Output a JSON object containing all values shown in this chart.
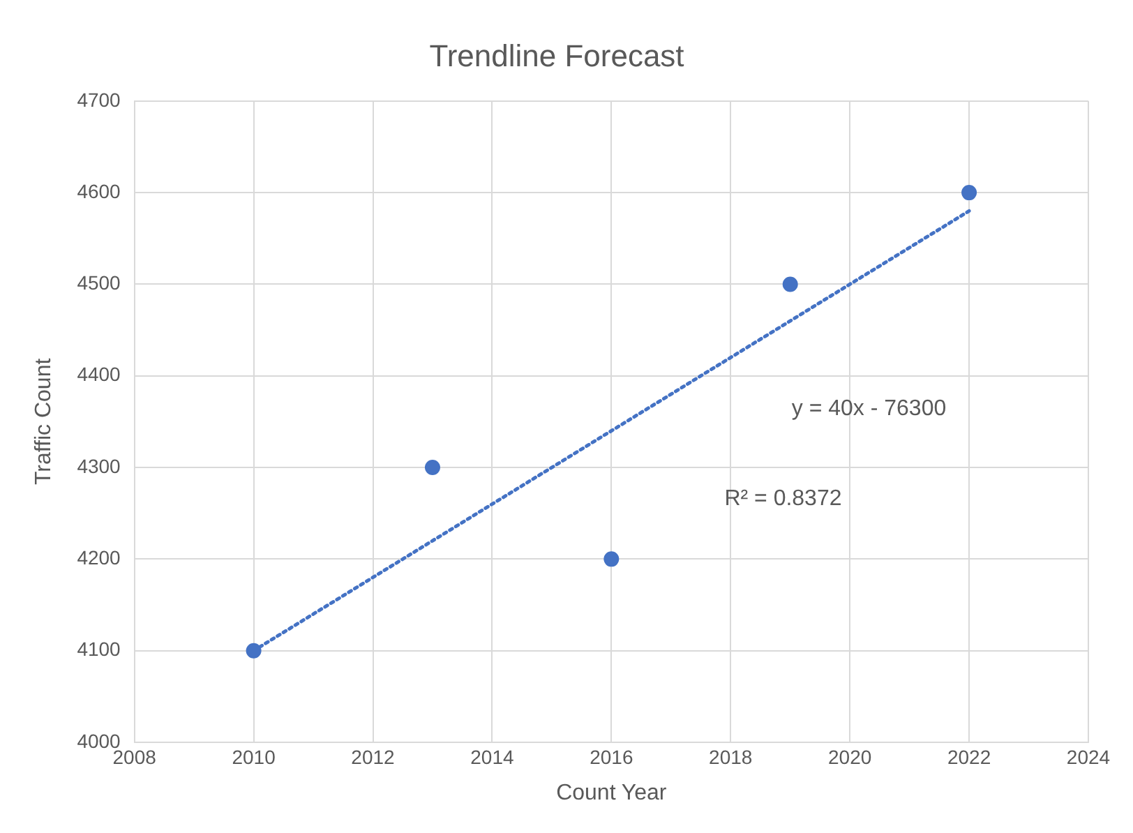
{
  "chart_data": {
    "type": "scatter",
    "title": "Trendline Forecast",
    "xlabel": "Count Year",
    "ylabel": "Traffic Count",
    "x": [
      2010,
      2013,
      2016,
      2019,
      2022
    ],
    "series": [
      {
        "type": "scatter",
        "color": "#4472c4",
        "values": [
          4100,
          4300,
          4200,
          4500,
          4600
        ],
        "marker": "circle"
      },
      {
        "type": "line",
        "color": "#4472c4",
        "x": [
          2010,
          2022
        ],
        "values": [
          4100,
          4580
        ],
        "line_style": "dotted",
        "marker": "none"
      }
    ],
    "xlim": [
      2008,
      2024
    ],
    "xticks": [
      2008,
      2010,
      2012,
      2014,
      2016,
      2018,
      2020,
      2022,
      2024
    ],
    "ylim": [
      4000,
      4700
    ],
    "yticks": [
      4000,
      4100,
      4200,
      4300,
      4400,
      4500,
      4600,
      4700
    ],
    "grid": true,
    "legend": false,
    "annotations": [
      "y = 40x - 76300",
      "R² = 0.8372"
    ]
  }
}
